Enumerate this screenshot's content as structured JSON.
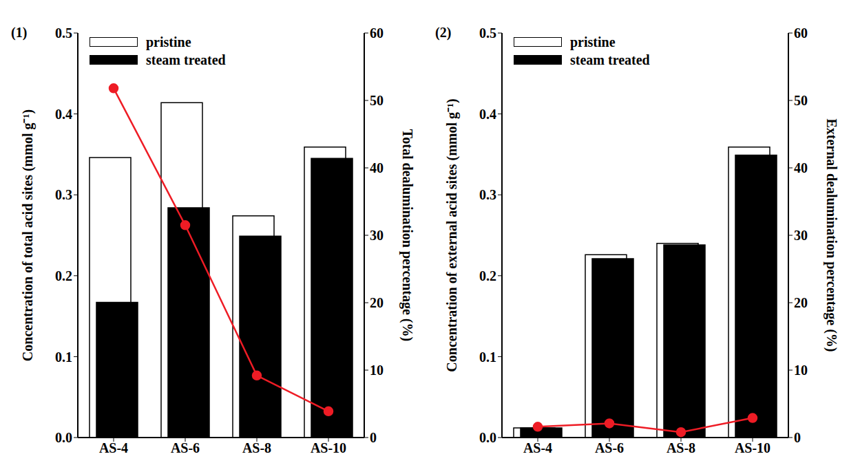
{
  "chart_data": [
    {
      "type": "bar",
      "title": "(1)",
      "categories": [
        "AS-4",
        "AS-6",
        "AS-8",
        "AS-10"
      ],
      "series": [
        {
          "name": "pristine",
          "color": "#ffffff",
          "values": [
            0.346,
            0.414,
            0.274,
            0.359
          ]
        },
        {
          "name": "steam treated",
          "color": "#000000",
          "values": [
            0.167,
            0.284,
            0.249,
            0.345
          ]
        },
        {
          "type": "line",
          "axis": "y2",
          "color": "#ee1c25",
          "marker": "circle",
          "values": [
            51.8,
            31.5,
            9.2,
            3.9
          ]
        }
      ],
      "y_label": "Concentration of total acid sites (mmol g⁻¹)",
      "y2_label": "Total dealumination percentage (%)",
      "ylim": [
        0,
        0.5
      ],
      "yticks": [
        {
          "value": 0,
          "label": "0.0"
        },
        0.1,
        0.2,
        0.3,
        0.4,
        0.5
      ],
      "y2lim": [
        0,
        60
      ],
      "y2ticks": [
        0,
        10,
        20,
        30,
        40,
        50,
        60
      ],
      "legend": "upper left",
      "grid": false
    },
    {
      "type": "bar",
      "title": "(2)",
      "categories": [
        "AS-4",
        "AS-6",
        "AS-8",
        "AS-10"
      ],
      "series": [
        {
          "name": "pristine",
          "color": "#ffffff",
          "values": [
            0.012,
            0.226,
            0.24,
            0.359
          ]
        },
        {
          "name": "steam treated",
          "color": "#000000",
          "values": [
            0.012,
            0.221,
            0.238,
            0.349
          ]
        },
        {
          "type": "line",
          "axis": "y2",
          "color": "#ee1c25",
          "marker": "circle",
          "values": [
            1.6,
            2.1,
            0.8,
            2.9
          ]
        }
      ],
      "y_label": "Concentration of external acid sites (mmol g⁻¹)",
      "y2_label": "External dealumination percentage  (%)",
      "ylim": [
        0,
        0.5
      ],
      "yticks": [
        {
          "value": 0,
          "label": "0.0"
        },
        0.1,
        0.2,
        0.3,
        0.4,
        0.5
      ],
      "y2lim": [
        0,
        60
      ],
      "y2ticks": [
        0,
        10,
        20,
        30,
        40,
        50,
        60
      ],
      "legend": "upper left",
      "grid": false
    }
  ]
}
